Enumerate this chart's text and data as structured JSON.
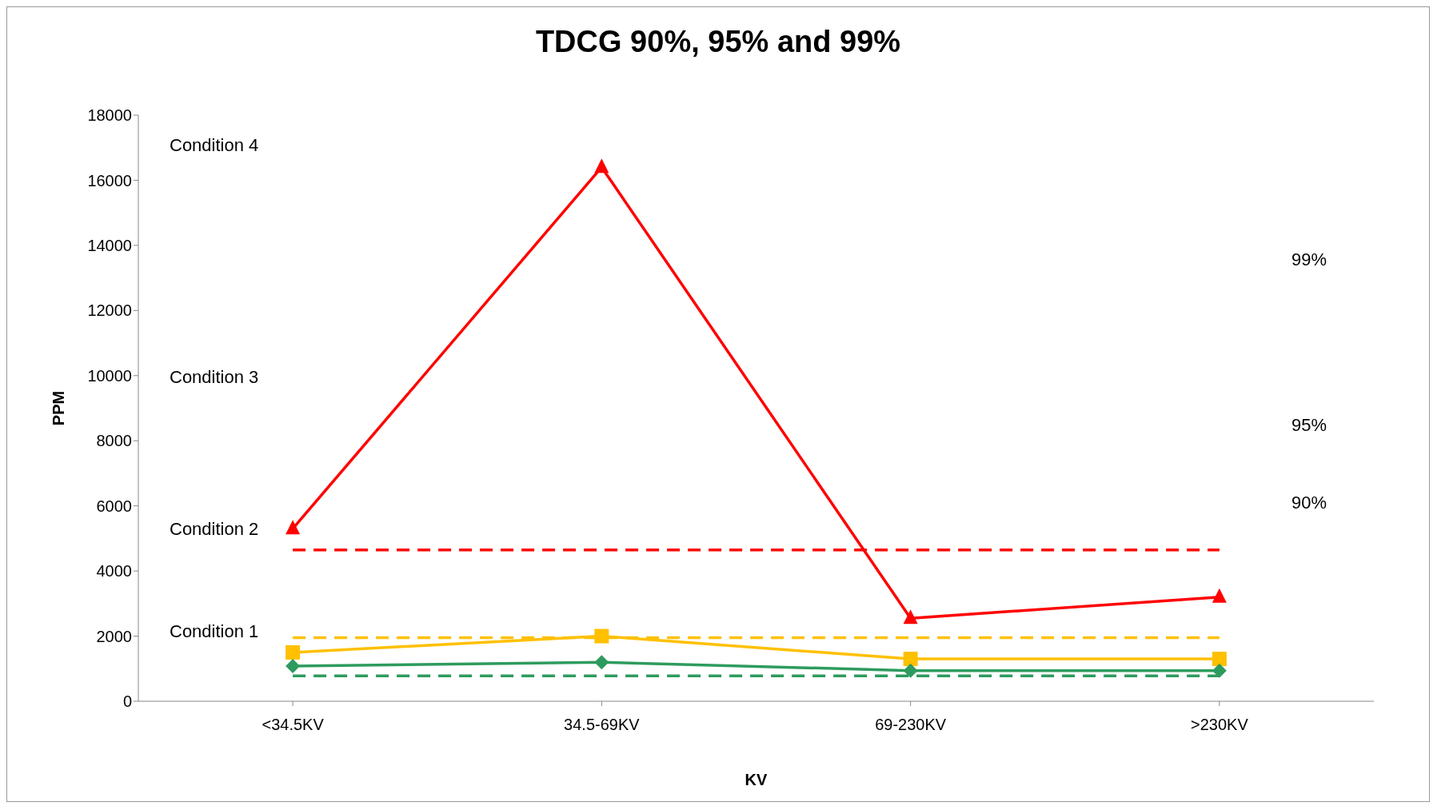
{
  "chart_data": {
    "type": "line",
    "title": "TDCG 90%, 95% and 99%",
    "xlabel": "KV",
    "ylabel": "PPM",
    "categories": [
      "<34.5KV",
      "34.5-69KV",
      "69-230KV",
      ">230KV"
    ],
    "series": [
      {
        "color": "#ff0000",
        "marker": "triangle",
        "line_style": "solid",
        "values": [
          5300,
          16400,
          2550,
          3200
        ]
      },
      {
        "color": "#ffc000",
        "marker": "square",
        "line_style": "solid",
        "values": [
          1500,
          2000,
          1300,
          1300
        ]
      },
      {
        "color": "#2e9b5e",
        "marker": "diamond",
        "line_style": "solid",
        "values": [
          1080,
          1200,
          940,
          940
        ]
      },
      {
        "color": "#ff0000",
        "marker": "none",
        "line_style": "dashed",
        "values": [
          4650,
          4650,
          4650,
          4650
        ]
      },
      {
        "color": "#ffc000",
        "marker": "none",
        "line_style": "dashed",
        "values": [
          1950,
          1950,
          1950,
          1950
        ]
      },
      {
        "color": "#2e9b5e",
        "marker": "none",
        "line_style": "dashed",
        "values": [
          780,
          780,
          780,
          780
        ]
      }
    ],
    "ylim": [
      0,
      18000
    ],
    "yticks": [
      0,
      2000,
      4000,
      6000,
      8000,
      10000,
      12000,
      14000,
      16000,
      18000
    ],
    "grid": false,
    "legend": false,
    "annotations": [
      "Condition 4",
      "Condition 3",
      "Condition 2",
      "Condition 1",
      "99%",
      "95%",
      "90%"
    ]
  }
}
